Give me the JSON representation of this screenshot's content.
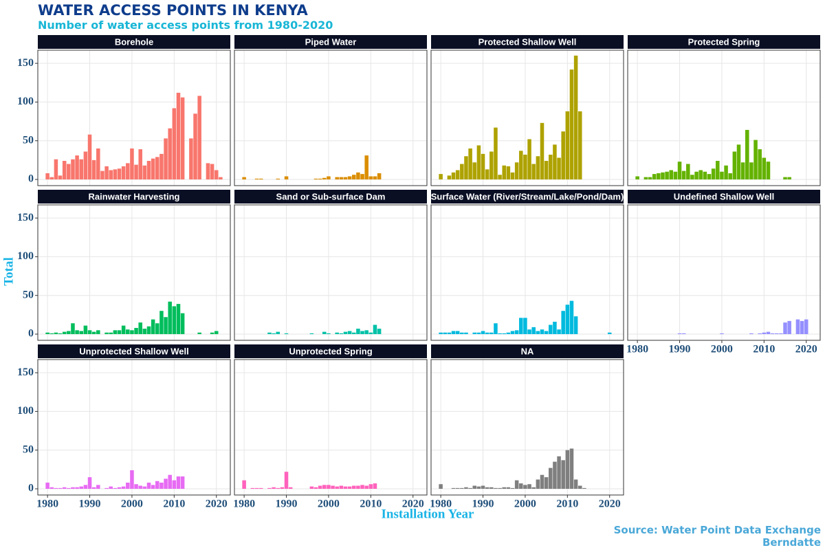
{
  "chart_data": {
    "type": "bar",
    "title": "WATER ACCESS POINTS IN KENYA",
    "subtitle": "Number of water access points from 1980-2020",
    "x_label": "Installation Year",
    "y_label": "Total",
    "source": "Source: Water Point Data Exchange",
    "author": "Berndatte",
    "x": [
      1980,
      1981,
      1982,
      1983,
      1984,
      1985,
      1986,
      1987,
      1988,
      1989,
      1990,
      1991,
      1992,
      1993,
      1994,
      1995,
      1996,
      1997,
      1998,
      1999,
      2000,
      2001,
      2002,
      2003,
      2004,
      2005,
      2006,
      2007,
      2008,
      2009,
      2010,
      2011,
      2012,
      2013,
      2014,
      2015,
      2016,
      2017,
      2018,
      2019,
      2020,
      2021,
      2022
    ],
    "xlim": [
      1977.7,
      2023.3
    ],
    "xticks": [
      1980,
      1990,
      2000,
      2010,
      2020
    ],
    "ylim": [
      -8,
      167
    ],
    "yticks": [
      0,
      50,
      100,
      150
    ],
    "grid": true,
    "series": [
      {
        "name": "Borehole",
        "color": "#F8766D",
        "values": [
          8,
          3,
          26,
          5,
          24,
          20,
          26,
          31,
          26,
          36,
          58,
          25,
          40,
          11,
          17,
          12,
          13,
          14,
          17,
          21,
          40,
          19,
          39,
          18,
          24,
          27,
          29,
          33,
          53,
          66,
          92,
          112,
          106,
          0,
          53,
          85,
          108,
          0,
          21,
          20,
          12,
          3,
          0
        ]
      },
      {
        "name": "Piped Water",
        "color": "#DB8E00",
        "values": [
          3,
          0,
          0,
          1,
          1,
          0,
          0,
          0,
          1,
          0,
          4,
          0,
          0,
          0,
          0,
          0,
          0,
          1,
          1,
          2,
          4,
          0,
          3,
          3,
          3,
          4,
          6,
          9,
          7,
          31,
          4,
          4,
          8,
          0,
          0,
          0,
          0,
          0,
          0,
          0,
          0,
          0,
          0
        ]
      },
      {
        "name": "Protected Shallow Well",
        "color": "#AEA200",
        "values": [
          7,
          0,
          5,
          9,
          12,
          20,
          30,
          40,
          22,
          44,
          33,
          13,
          36,
          67,
          6,
          18,
          17,
          9,
          22,
          37,
          32,
          52,
          20,
          30,
          73,
          24,
          32,
          45,
          28,
          62,
          88,
          142,
          160,
          88,
          0,
          0,
          0,
          0,
          0,
          0,
          0,
          0,
          0
        ]
      },
      {
        "name": "Protected Spring",
        "color": "#64B200",
        "values": [
          4,
          0,
          3,
          3,
          7,
          8,
          9,
          10,
          12,
          10,
          23,
          11,
          20,
          6,
          10,
          12,
          10,
          7,
          14,
          24,
          10,
          18,
          8,
          36,
          45,
          22,
          64,
          22,
          51,
          39,
          28,
          23,
          0,
          0,
          0,
          3,
          3,
          0,
          0,
          0,
          0,
          0,
          0
        ]
      },
      {
        "name": "Rainwater Harvesting",
        "color": "#00BD5C",
        "values": [
          2,
          1,
          2,
          1,
          3,
          4,
          14,
          5,
          4,
          11,
          5,
          3,
          5,
          0,
          2,
          2,
          5,
          5,
          11,
          6,
          5,
          8,
          15,
          7,
          10,
          19,
          14,
          30,
          22,
          42,
          36,
          39,
          27,
          0,
          0,
          0,
          2,
          0,
          0,
          2,
          4,
          0,
          0
        ]
      },
      {
        "name": "Sand or Sub-surface Dam",
        "color": "#00C1A7",
        "values": [
          0,
          0,
          0,
          0,
          0,
          0,
          2,
          1,
          3,
          0,
          1,
          0,
          0,
          0,
          0,
          0,
          1,
          0,
          0,
          3,
          1,
          0,
          2,
          1,
          3,
          4,
          2,
          7,
          4,
          5,
          2,
          12,
          7,
          0,
          0,
          0,
          0,
          0,
          0,
          0,
          0,
          0,
          0
        ]
      },
      {
        "name": "Surface Water (River/Stream/Lake/Pond/Dam)",
        "color": "#00BADE",
        "values": [
          2,
          2,
          2,
          4,
          4,
          2,
          2,
          0,
          2,
          2,
          4,
          2,
          2,
          14,
          1,
          1,
          2,
          4,
          5,
          21,
          21,
          6,
          9,
          4,
          6,
          4,
          12,
          16,
          6,
          30,
          38,
          43,
          23,
          0,
          0,
          0,
          0,
          0,
          0,
          0,
          2,
          0,
          0
        ]
      },
      {
        "name": "Undefined Shallow Well",
        "color": "#9590FF",
        "values": [
          0,
          0,
          0,
          0,
          0,
          0,
          0,
          0,
          0,
          0,
          1,
          1,
          0,
          0,
          0,
          0,
          0,
          0,
          0,
          0,
          1,
          0,
          0,
          0,
          0,
          0,
          0,
          1,
          0,
          1,
          2,
          3,
          1,
          1,
          1,
          15,
          17,
          0,
          19,
          17,
          19,
          0,
          0
        ]
      },
      {
        "name": "Unprotected Shallow Well",
        "color": "#E76BF3",
        "values": [
          8,
          2,
          1,
          1,
          2,
          1,
          2,
          2,
          3,
          5,
          15,
          2,
          5,
          0,
          1,
          3,
          1,
          2,
          3,
          8,
          24,
          6,
          4,
          3,
          8,
          5,
          10,
          8,
          13,
          18,
          11,
          16,
          16,
          0,
          0,
          0,
          0,
          0,
          0,
          0,
          0,
          0,
          0
        ]
      },
      {
        "name": "Unprotected Spring",
        "color": "#FF62BC",
        "values": [
          11,
          0,
          1,
          1,
          1,
          0,
          1,
          2,
          1,
          2,
          22,
          2,
          0,
          0,
          0,
          0,
          3,
          2,
          4,
          5,
          5,
          4,
          3,
          4,
          3,
          3,
          4,
          4,
          5,
          4,
          6,
          7,
          0,
          0,
          0,
          0,
          0,
          0,
          0,
          0,
          0,
          0,
          0
        ]
      },
      {
        "name": "NA",
        "color": "#7F7F7F",
        "values": [
          6,
          0,
          0,
          1,
          1,
          1,
          2,
          1,
          4,
          3,
          4,
          2,
          2,
          1,
          1,
          2,
          2,
          1,
          11,
          7,
          5,
          6,
          2,
          12,
          18,
          15,
          27,
          35,
          42,
          37,
          50,
          52,
          12,
          4,
          1,
          0,
          0,
          0,
          0,
          0,
          0,
          0,
          0
        ]
      }
    ]
  }
}
